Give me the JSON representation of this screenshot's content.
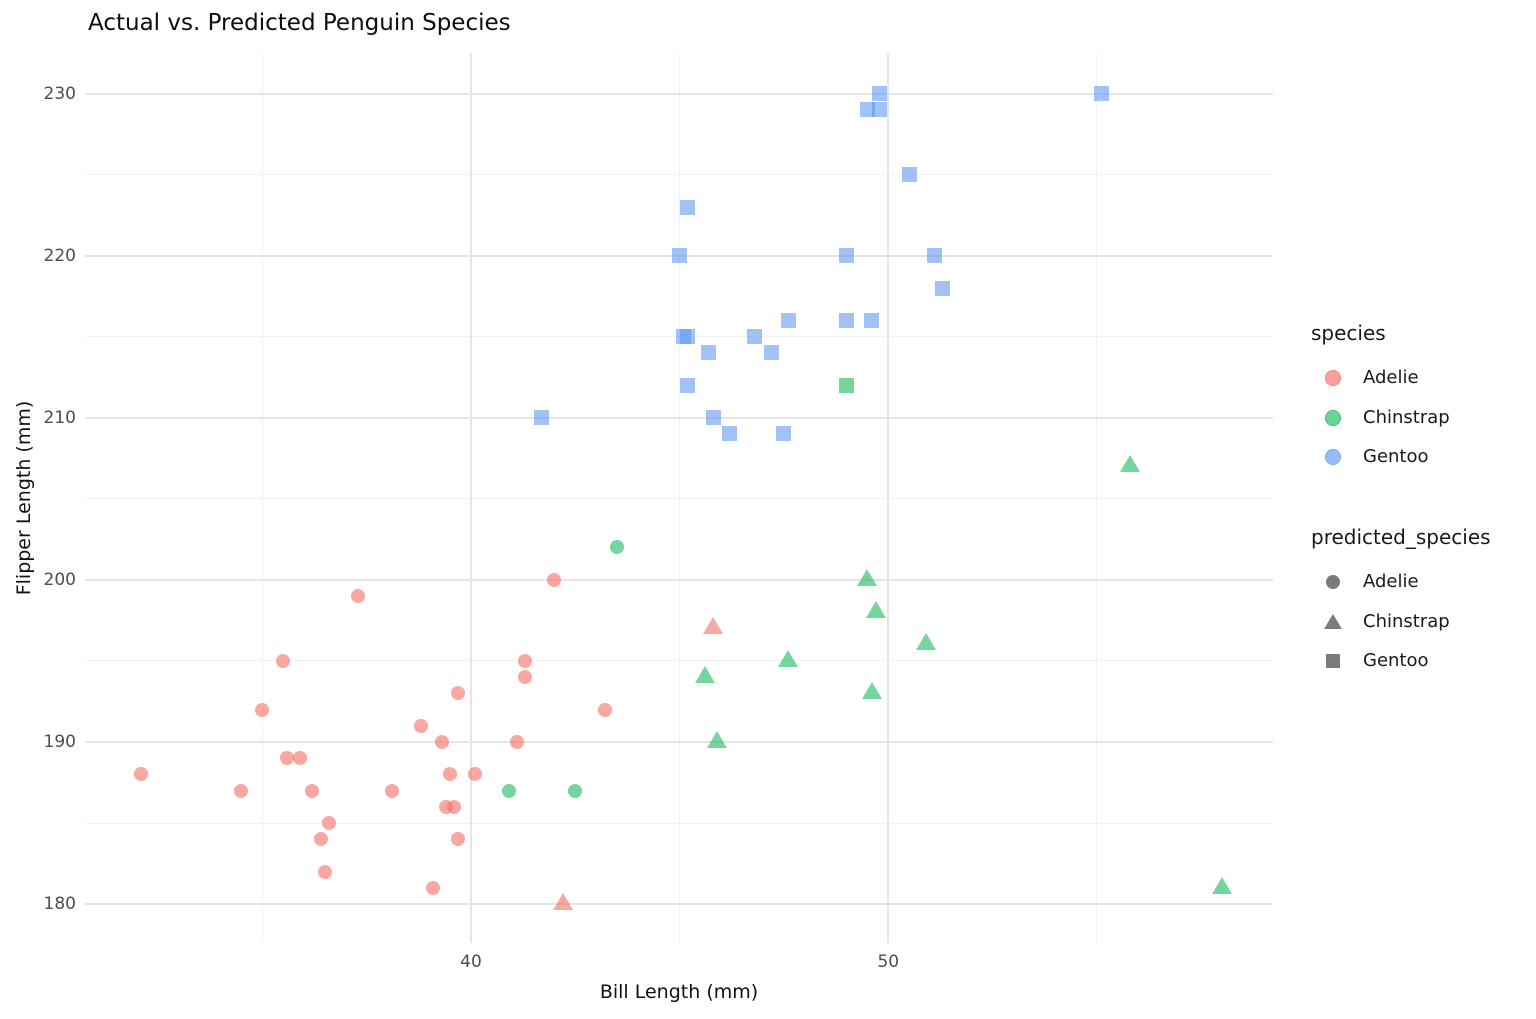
{
  "title": "Actual vs. Predicted Penguin Species",
  "x_axis": {
    "label": "Bill Length (mm)",
    "tick_labels": [
      "40",
      "50"
    ]
  },
  "y_axis": {
    "label": "Flipper Length (mm)",
    "tick_labels": [
      "180",
      "190",
      "200",
      "210",
      "220",
      "230"
    ]
  },
  "legend": {
    "species": {
      "title": "species",
      "items": [
        {
          "label": "Adelie",
          "color": "#F4685C",
          "shape": "circle"
        },
        {
          "label": "Chinstrap",
          "color": "#10B956",
          "shape": "circle"
        },
        {
          "label": "Gentoo",
          "color": "#5B96F2",
          "shape": "circle"
        }
      ]
    },
    "predicted_species": {
      "title": "predicted_species",
      "key_color": "#7B7B7B",
      "items": [
        {
          "label": "Adelie",
          "shape": "circle"
        },
        {
          "label": "Chinstrap",
          "shape": "triangle"
        },
        {
          "label": "Gentoo",
          "shape": "square"
        }
      ]
    }
  },
  "chart_data": {
    "type": "scatter",
    "title": "Actual vs. Predicted Penguin Species",
    "xlabel": "Bill Length (mm)",
    "ylabel": "Flipper Length (mm)",
    "xlim": [
      30.75,
      59.22
    ],
    "ylim": [
      177.6,
      232.5
    ],
    "x_major_ticks": [
      40,
      50
    ],
    "x_minor_ticks": [
      35,
      45,
      55
    ],
    "y_major_ticks": [
      180,
      190,
      200,
      210,
      220,
      230
    ],
    "y_minor_ticks": [
      185,
      195,
      205,
      215,
      225
    ],
    "grid": "major+minor, no axis lines (minimal theme)",
    "legend_position": "right",
    "point_alpha": 0.58,
    "series": [
      {
        "species": "Adelie",
        "predicted_species": "Adelie",
        "shape": "circle",
        "color": "#F4685C",
        "points": [
          [
            42.0,
            200
          ],
          [
            37.3,
            199
          ],
          [
            35.5,
            195
          ],
          [
            41.3,
            195
          ],
          [
            41.3,
            194
          ],
          [
            39.7,
            193
          ],
          [
            35.0,
            192
          ],
          [
            43.2,
            192
          ],
          [
            38.8,
            191
          ],
          [
            39.3,
            190
          ],
          [
            41.1,
            190
          ],
          [
            35.6,
            189
          ],
          [
            35.9,
            189
          ],
          [
            32.1,
            188
          ],
          [
            39.5,
            188
          ],
          [
            40.1,
            188
          ],
          [
            34.5,
            187
          ],
          [
            36.2,
            187
          ],
          [
            38.1,
            187
          ],
          [
            39.4,
            186
          ],
          [
            39.6,
            186
          ],
          [
            36.6,
            185
          ],
          [
            36.4,
            184
          ],
          [
            39.7,
            184
          ],
          [
            36.5,
            182
          ],
          [
            39.1,
            181
          ]
        ]
      },
      {
        "species": "Adelie",
        "predicted_species": "Chinstrap",
        "shape": "triangle",
        "color": "#F4685C",
        "points": [
          [
            45.8,
            197
          ],
          [
            42.2,
            180
          ]
        ]
      },
      {
        "species": "Chinstrap",
        "predicted_species": "Adelie",
        "shape": "circle",
        "color": "#10B956",
        "points": [
          [
            43.5,
            202
          ],
          [
            40.9,
            187
          ],
          [
            42.5,
            187
          ]
        ]
      },
      {
        "species": "Chinstrap",
        "predicted_species": "Chinstrap",
        "shape": "triangle",
        "color": "#10B956",
        "points": [
          [
            55.8,
            207
          ],
          [
            49.5,
            200
          ],
          [
            49.7,
            198
          ],
          [
            50.9,
            196
          ],
          [
            47.6,
            195
          ],
          [
            45.6,
            194
          ],
          [
            49.6,
            193
          ],
          [
            45.9,
            190
          ],
          [
            58.0,
            181
          ]
        ]
      },
      {
        "species": "Chinstrap",
        "predicted_species": "Gentoo",
        "shape": "square",
        "color": "#10B956",
        "points": [
          [
            49.0,
            212
          ]
        ]
      },
      {
        "species": "Gentoo",
        "predicted_species": "Gentoo",
        "shape": "square",
        "color": "#5B96F2",
        "points": [
          [
            49.8,
            230
          ],
          [
            55.1,
            230
          ],
          [
            49.8,
            229
          ],
          [
            49.5,
            229
          ],
          [
            50.5,
            225
          ],
          [
            45.2,
            223
          ],
          [
            45.0,
            220
          ],
          [
            49.0,
            220
          ],
          [
            51.1,
            220
          ],
          [
            51.3,
            218
          ],
          [
            47.6,
            216
          ],
          [
            49.0,
            216
          ],
          [
            49.6,
            216
          ],
          [
            45.1,
            215
          ],
          [
            45.2,
            215
          ],
          [
            46.8,
            215
          ],
          [
            45.7,
            214
          ],
          [
            47.2,
            214
          ],
          [
            45.2,
            212
          ],
          [
            41.7,
            210
          ],
          [
            45.8,
            210
          ],
          [
            46.2,
            209
          ],
          [
            47.5,
            209
          ]
        ]
      }
    ]
  }
}
